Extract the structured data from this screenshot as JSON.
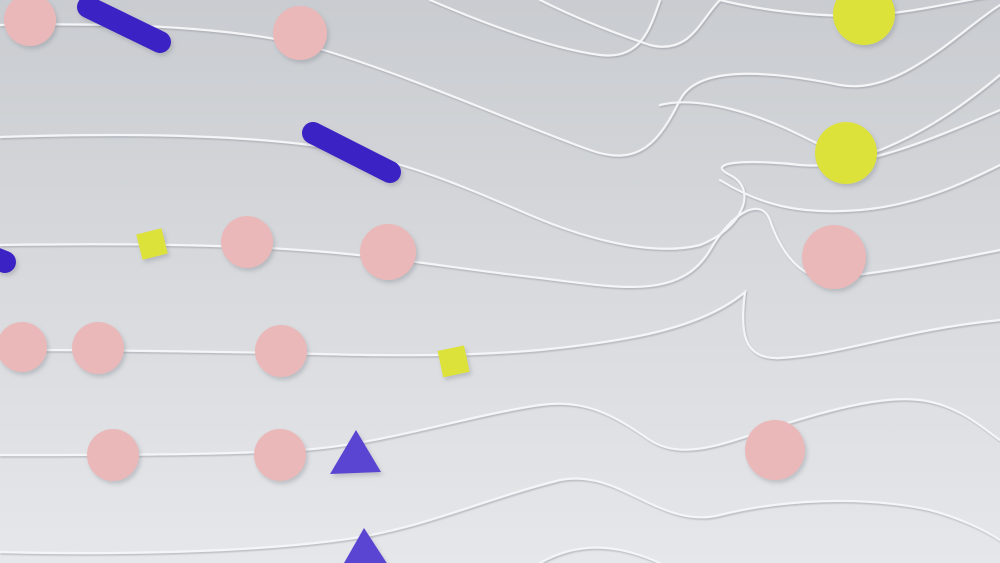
{
  "scene": {
    "description_hidden": "",
    "colors": {
      "background_top": "#c9ccd0",
      "background_bottom": "#e6e7ea",
      "line": "#f4f5f7",
      "line_shadow": "#aeb2b8",
      "pink": "#eab8b8",
      "pink_shadow": "#c79898",
      "yellow": "#dde23a",
      "yellow_shadow": "#b5b929",
      "blue": "#3b23c4",
      "blue_shadow": "#261684",
      "violet": "#5a45d2"
    },
    "shape_kinds": [
      "circle",
      "square",
      "capsule",
      "triangle"
    ]
  }
}
